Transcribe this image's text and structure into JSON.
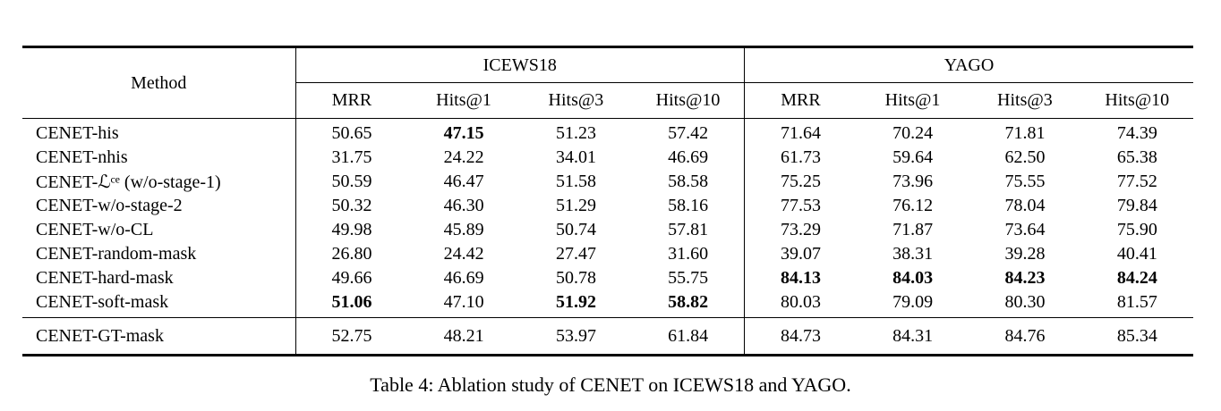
{
  "table": {
    "caption": "Table 4: Ablation study of CENET on ICEWS18 and YAGO.",
    "method_header": "Method",
    "groups": [
      {
        "label": "ICEWS18",
        "columns": [
          "MRR",
          "Hits@1",
          "Hits@3",
          "Hits@10"
        ]
      },
      {
        "label": "YAGO",
        "columns": [
          "MRR",
          "Hits@1",
          "Hits@3",
          "Hits@10"
        ]
      }
    ],
    "rows": [
      {
        "method": "CENET-his",
        "values": [
          "50.65",
          "47.15",
          "51.23",
          "57.42",
          "71.64",
          "70.24",
          "71.81",
          "74.39"
        ],
        "bold": [
          false,
          true,
          false,
          false,
          false,
          false,
          false,
          false
        ]
      },
      {
        "method": "CENET-nhis",
        "values": [
          "31.75",
          "24.22",
          "34.01",
          "46.69",
          "61.73",
          "59.64",
          "62.50",
          "65.38"
        ],
        "bold": [
          false,
          false,
          false,
          false,
          false,
          false,
          false,
          false
        ]
      },
      {
        "method": "CENET-ℒᶜᵉ (w/o-stage-1)",
        "values": [
          "50.59",
          "46.47",
          "51.58",
          "58.58",
          "75.25",
          "73.96",
          "75.55",
          "77.52"
        ],
        "bold": [
          false,
          false,
          false,
          false,
          false,
          false,
          false,
          false
        ]
      },
      {
        "method": "CENET-w/o-stage-2",
        "values": [
          "50.32",
          "46.30",
          "51.29",
          "58.16",
          "77.53",
          "76.12",
          "78.04",
          "79.84"
        ],
        "bold": [
          false,
          false,
          false,
          false,
          false,
          false,
          false,
          false
        ]
      },
      {
        "method": "CENET-w/o-CL",
        "values": [
          "49.98",
          "45.89",
          "50.74",
          "57.81",
          "73.29",
          "71.87",
          "73.64",
          "75.90"
        ],
        "bold": [
          false,
          false,
          false,
          false,
          false,
          false,
          false,
          false
        ]
      },
      {
        "method": "CENET-random-mask",
        "values": [
          "26.80",
          "24.42",
          "27.47",
          "31.60",
          "39.07",
          "38.31",
          "39.28",
          "40.41"
        ],
        "bold": [
          false,
          false,
          false,
          false,
          false,
          false,
          false,
          false
        ]
      },
      {
        "method": "CENET-hard-mask",
        "values": [
          "49.66",
          "46.69",
          "50.78",
          "55.75",
          "84.13",
          "84.03",
          "84.23",
          "84.24"
        ],
        "bold": [
          false,
          false,
          false,
          false,
          true,
          true,
          true,
          true
        ]
      },
      {
        "method": "CENET-soft-mask",
        "values": [
          "51.06",
          "47.10",
          "51.92",
          "58.82",
          "80.03",
          "79.09",
          "80.30",
          "81.57"
        ],
        "bold": [
          true,
          false,
          true,
          true,
          false,
          false,
          false,
          false
        ]
      }
    ],
    "footer_row": {
      "method": "CENET-GT-mask",
      "values": [
        "52.75",
        "48.21",
        "53.97",
        "61.84",
        "84.73",
        "84.31",
        "84.76",
        "85.34"
      ],
      "bold": [
        false,
        false,
        false,
        false,
        false,
        false,
        false,
        false
      ]
    }
  }
}
